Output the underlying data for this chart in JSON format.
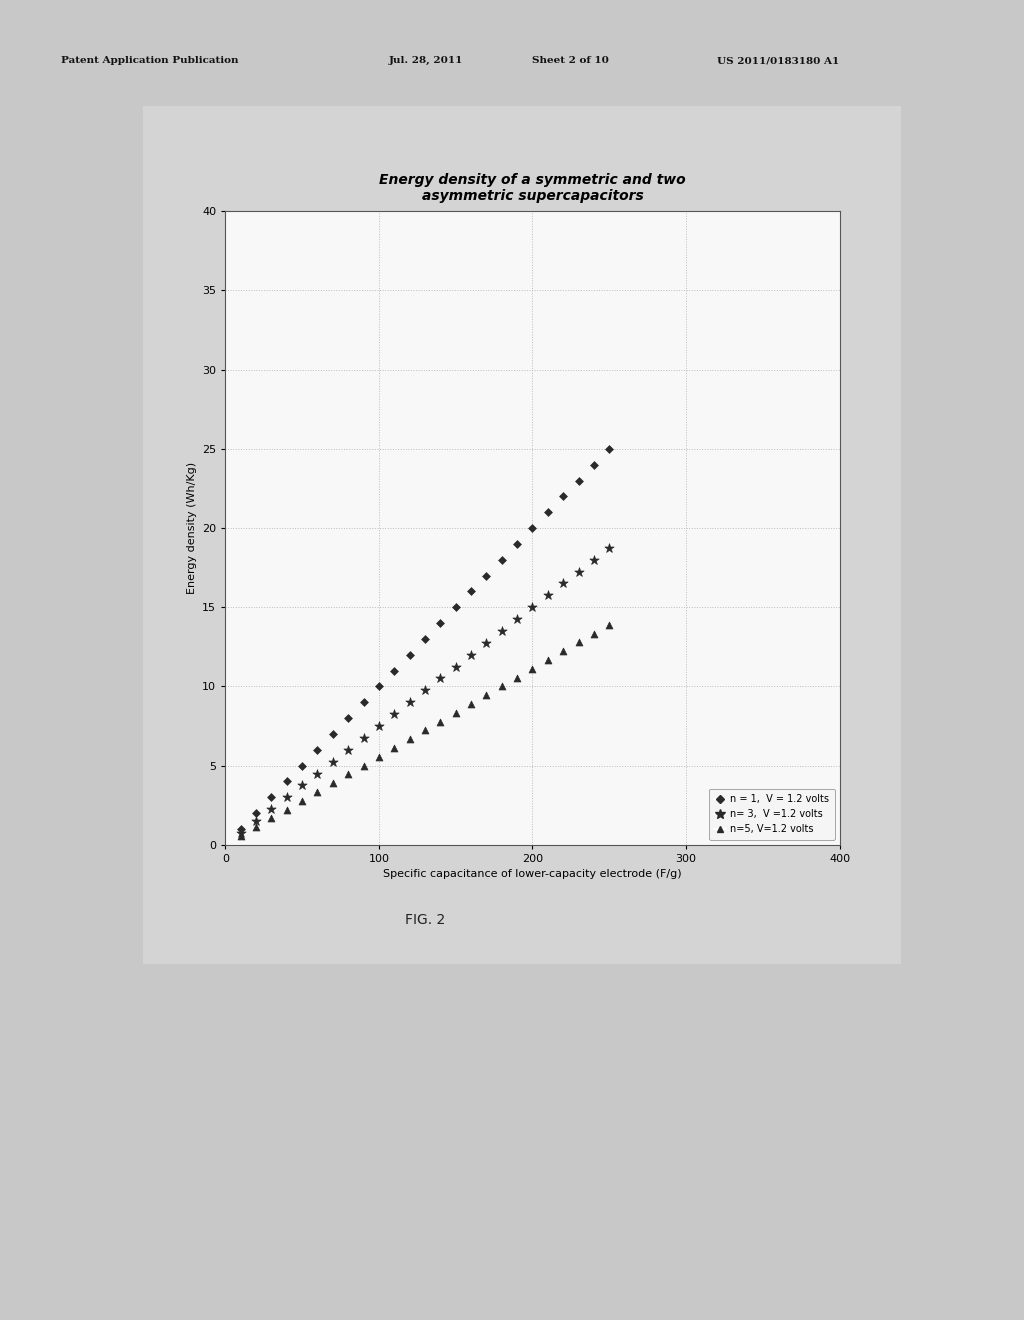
{
  "title": "Energy density of a symmetric and two\nasymmetric supercapacitors",
  "xlabel": "Specific capacitance of lower-capacity electrode (F/g)",
  "ylabel": "Energy density (Wh/Kg)",
  "xlim": [
    0,
    400
  ],
  "ylim": [
    0,
    40
  ],
  "xticks": [
    0,
    100,
    200,
    300,
    400
  ],
  "yticks": [
    0,
    5,
    10,
    15,
    20,
    25,
    30,
    35,
    40
  ],
  "voltage": 1.697,
  "n_values": [
    1,
    3,
    5
  ],
  "c1_values": [
    10,
    20,
    30,
    40,
    50,
    60,
    70,
    80,
    90,
    100,
    110,
    120,
    130,
    140,
    150,
    160,
    170,
    180,
    190,
    200,
    210,
    220,
    230,
    240,
    250
  ],
  "legend_labels": [
    "n = 1,  V = 1.2 volts",
    "n= 3,  V =1.2 volts",
    "n=5, V=1.2 volts"
  ],
  "marker_n1": "D",
  "marker_n3": "*",
  "marker_n5": "^",
  "marker_color": "#2a2a2a",
  "marker_size_diamond": 4,
  "marker_size_star": 7,
  "marker_size_tri": 5,
  "grid_color": "#bbbbbb",
  "bg_outer": "#c8c8c8",
  "bg_chart_panel": "#d8d8d8",
  "chart_bg": "#f0f0f0",
  "header_text": "Patent Application Publication    Jul. 28, 2011   Sheet 2 of 10       US 2011/0183180 A1",
  "fig_label": "FIG. 2",
  "title_fontsize": 10,
  "axis_fontsize": 8,
  "tick_fontsize": 8,
  "legend_fontsize": 7
}
